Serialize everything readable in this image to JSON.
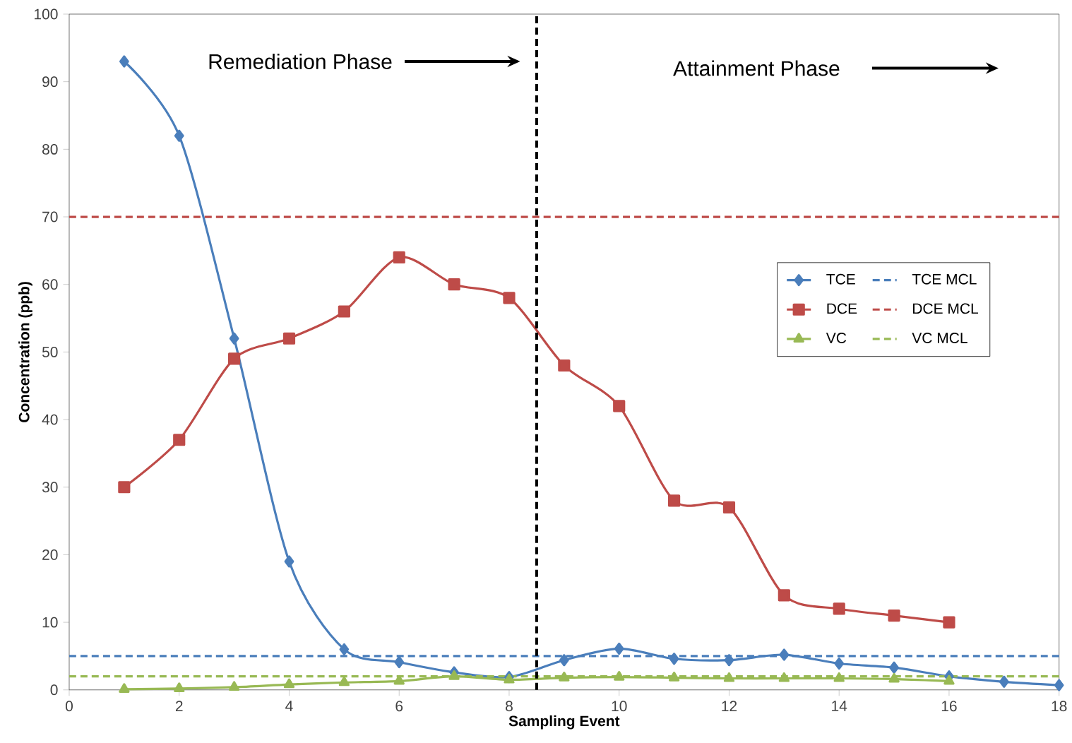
{
  "chart_data": {
    "type": "line",
    "xlabel": "Sampling Event",
    "ylabel": "Concentration (ppb)",
    "xlim": [
      0,
      18
    ],
    "ylim": [
      0,
      100
    ],
    "xticks": [
      0,
      2,
      4,
      6,
      8,
      10,
      12,
      14,
      16,
      18
    ],
    "yticks": [
      0,
      10,
      20,
      30,
      40,
      50,
      60,
      70,
      80,
      90,
      100
    ],
    "grid": false,
    "legend": "right",
    "annotations": [
      "Remediation Phase",
      "Attainment Phase"
    ],
    "ref_lines": [
      {
        "axis": "x",
        "value": 8.5,
        "color": "#000000",
        "line_style": "dashed"
      }
    ],
    "series": [
      {
        "name": "TCE",
        "color": "#4a7ebb",
        "marker": "diamond",
        "line_style": "solid",
        "x": [
          1,
          2,
          3,
          4,
          5,
          6,
          7,
          8,
          9,
          10,
          11,
          12,
          13,
          14,
          15,
          16,
          17,
          18
        ],
        "values": [
          93,
          82,
          52,
          19,
          6,
          4.1,
          2.6,
          1.9,
          4.4,
          6.1,
          4.6,
          4.4,
          5.2,
          3.9,
          3.3,
          2.0,
          1.2,
          0.7
        ]
      },
      {
        "name": "TCE MCL",
        "color": "#4a7ebb",
        "marker": "none",
        "line_style": "dashed",
        "x": [
          0,
          18
        ],
        "values": [
          5,
          5
        ]
      },
      {
        "name": "DCE",
        "color": "#be4b48",
        "marker": "square",
        "line_style": "solid",
        "x": [
          1,
          2,
          3,
          4,
          5,
          6,
          7,
          8,
          9,
          10,
          11,
          12,
          13,
          14,
          15,
          16
        ],
        "values": [
          30,
          37,
          49,
          52,
          56,
          64,
          60,
          58,
          48,
          42,
          28,
          27,
          14,
          12,
          11,
          10
        ]
      },
      {
        "name": "DCE MCL",
        "color": "#be4b48",
        "marker": "none",
        "line_style": "dashed",
        "x": [
          0,
          18
        ],
        "values": [
          70,
          70
        ]
      },
      {
        "name": "VC",
        "color": "#98b954",
        "marker": "triangle",
        "line_style": "solid",
        "x": [
          1,
          2,
          3,
          4,
          5,
          6,
          7,
          8,
          9,
          10,
          11,
          12,
          13,
          14,
          15,
          16
        ],
        "values": [
          0.1,
          0.2,
          0.4,
          0.8,
          1.1,
          1.3,
          2.0,
          1.5,
          1.8,
          1.9,
          1.8,
          1.7,
          1.7,
          1.7,
          1.6,
          1.3
        ]
      },
      {
        "name": "VC MCL",
        "color": "#98b954",
        "marker": "none",
        "line_style": "dashed",
        "x": [
          0,
          18
        ],
        "values": [
          2,
          2
        ]
      }
    ]
  }
}
